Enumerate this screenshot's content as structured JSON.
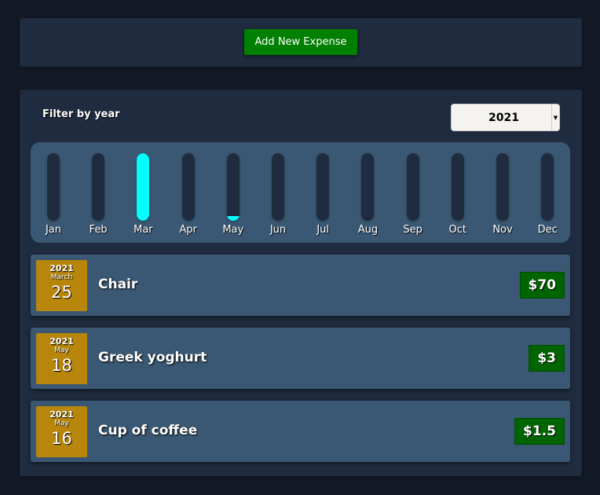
{
  "header": {
    "add_button": "Add New Expense"
  },
  "filter": {
    "label": "Filter by year",
    "selected_year": "2021"
  },
  "chart_data": {
    "type": "bar",
    "categories": [
      "Jan",
      "Feb",
      "Mar",
      "Apr",
      "May",
      "Jun",
      "Jul",
      "Aug",
      "Sep",
      "Oct",
      "Nov",
      "Dec"
    ],
    "values": [
      0,
      0,
      70,
      0,
      4.5,
      0,
      0,
      0,
      0,
      0,
      0,
      0
    ],
    "fill_color": "#00ffff"
  },
  "expenses": [
    {
      "year": "2021",
      "month": "March",
      "day": "25",
      "title": "Chair",
      "amount": "$70"
    },
    {
      "year": "2021",
      "month": "May",
      "day": "18",
      "title": "Greek yoghurt",
      "amount": "$3"
    },
    {
      "year": "2021",
      "month": "May",
      "day": "16",
      "title": "Cup of coffee",
      "amount": "$1.5"
    }
  ]
}
